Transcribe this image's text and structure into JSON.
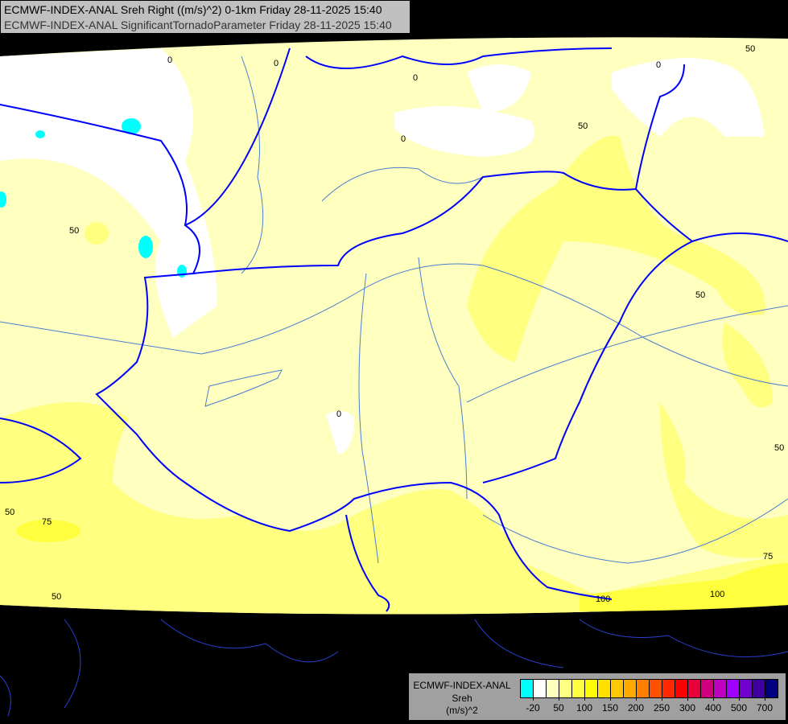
{
  "header": {
    "line1": "ECMWF-INDEX-ANAL Sreh Right ((m/s)^2) 0-1km Friday 28-11-2025 15:40",
    "line2": "ECMWF-INDEX-ANAL SignificantTornadoParameter Friday 28-11-2025 15:40"
  },
  "legend": {
    "model": "ECMWF-INDEX-ANAL",
    "parameter": "Sreh",
    "unit": "(m/s)^2",
    "colors": [
      "#00ffff",
      "#ffffff",
      "#ffffc0",
      "#ffff80",
      "#ffff40",
      "#ffff00",
      "#ffe000",
      "#ffc800",
      "#ffa800",
      "#ff8000",
      "#ff5000",
      "#ff2800",
      "#ff0000",
      "#e8003c",
      "#d0007c",
      "#c000c0",
      "#a000ff",
      "#7000d0",
      "#4000a0",
      "#000080"
    ],
    "tick_labels": [
      "-20",
      "50",
      "100",
      "150",
      "200",
      "250",
      "300",
      "400",
      "500",
      "700"
    ]
  },
  "map": {
    "contour_labels": [
      "0",
      "0",
      "0",
      "0",
      "0",
      "0",
      "50",
      "50",
      "50",
      "50",
      "50",
      "50",
      "50",
      "75",
      "75",
      "100",
      "100"
    ],
    "colors": {
      "border": "#0000ff",
      "river": "#4a7fd0",
      "land_bg": "#000000",
      "fill_low": "#ffffc0",
      "fill_mid": "#ffff80"
    }
  }
}
